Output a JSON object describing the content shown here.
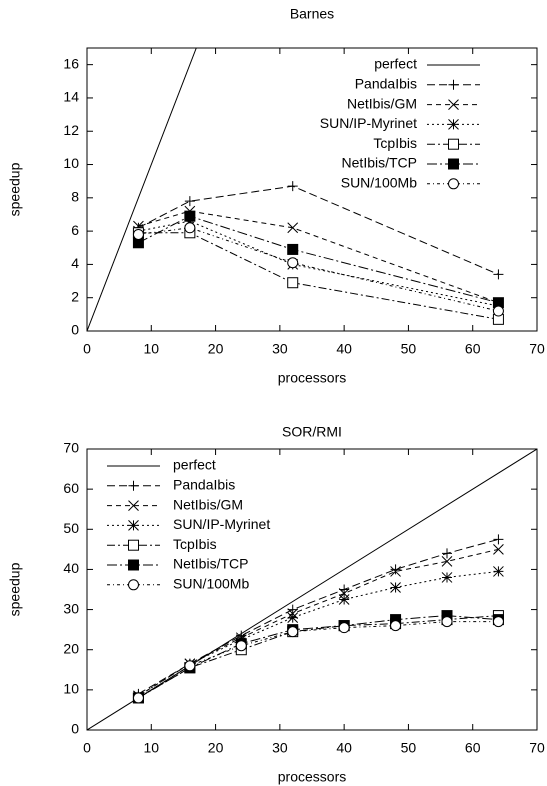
{
  "chart_data": [
    {
      "type": "line",
      "title": "Barnes",
      "xlabel": "processors",
      "ylabel": "speedup",
      "xlim": [
        0,
        70
      ],
      "ylim": [
        0,
        17
      ],
      "xticks": [
        0,
        10,
        20,
        30,
        40,
        50,
        60,
        70
      ],
      "yticks": [
        0,
        2,
        4,
        6,
        8,
        10,
        12,
        14,
        16
      ],
      "legend": "top-right",
      "x": [
        8,
        16,
        32,
        64
      ],
      "series": [
        {
          "name": "perfect",
          "color": "#000000",
          "dash": "none",
          "marker": "none",
          "x": [
            0,
            17
          ],
          "values": [
            0,
            17
          ]
        },
        {
          "name": "PandaIbis",
          "color": "#000000",
          "dash": "8,4",
          "marker": "plus",
          "values": [
            6.2,
            7.8,
            8.7,
            3.4
          ]
        },
        {
          "name": "NetIbis/GM",
          "color": "#000000",
          "dash": "5,4",
          "marker": "cross",
          "values": [
            6.3,
            7.2,
            6.2,
            1.7
          ]
        },
        {
          "name": "SUN/IP-Myrinet",
          "color": "#000000",
          "dash": "2,3",
          "marker": "star",
          "values": [
            6.0,
            6.6,
            4.0,
            1.5
          ]
        },
        {
          "name": "TcpIbis",
          "color": "#000000",
          "dash": "8,3,2,3",
          "marker": "open-square",
          "values": [
            5.9,
            5.9,
            2.9,
            0.7
          ]
        },
        {
          "name": "NetIbis/TCP",
          "color": "#000000",
          "dash": "10,3,2,3",
          "marker": "filled-square",
          "values": [
            5.3,
            6.9,
            4.9,
            1.7
          ]
        },
        {
          "name": "SUN/100Mb",
          "color": "#000000",
          "dash": "3,3,1,3",
          "marker": "open-circle",
          "values": [
            5.8,
            6.2,
            4.1,
            1.2
          ]
        }
      ]
    },
    {
      "type": "line",
      "title": "SOR/RMI",
      "xlabel": "processors",
      "ylabel": "speedup",
      "xlim": [
        0,
        70
      ],
      "ylim": [
        0,
        70
      ],
      "xticks": [
        0,
        10,
        20,
        30,
        40,
        50,
        60,
        70
      ],
      "yticks": [
        0,
        10,
        20,
        30,
        40,
        50,
        60,
        70
      ],
      "legend": "top-left",
      "x": [
        8,
        16,
        24,
        32,
        40,
        48,
        56,
        64
      ],
      "series": [
        {
          "name": "perfect",
          "color": "#000000",
          "dash": "none",
          "marker": "none",
          "x": [
            0,
            70
          ],
          "values": [
            0,
            70
          ]
        },
        {
          "name": "PandaIbis",
          "color": "#000000",
          "dash": "8,4",
          "marker": "plus",
          "values": [
            9,
            16.5,
            23.5,
            30,
            35,
            40,
            44,
            47.5
          ]
        },
        {
          "name": "NetIbis/GM",
          "color": "#000000",
          "dash": "5,4",
          "marker": "cross",
          "values": [
            8.5,
            16.5,
            23,
            29,
            34,
            39.5,
            42,
            45
          ]
        },
        {
          "name": "SUN/IP-Myrinet",
          "color": "#000000",
          "dash": "2,3",
          "marker": "star",
          "values": [
            8.5,
            16.5,
            22.5,
            28,
            32.5,
            35.5,
            38,
            39.5
          ]
        },
        {
          "name": "TcpIbis",
          "color": "#000000",
          "dash": "8,3,2,3",
          "marker": "open-square",
          "values": [
            8,
            15.5,
            20,
            24.5,
            26,
            26.5,
            27.5,
            28.5
          ]
        },
        {
          "name": "NetIbis/TCP",
          "color": "#000000",
          "dash": "10,3,2,3",
          "marker": "filled-square",
          "values": [
            8,
            15.5,
            21.5,
            25,
            26,
            27.5,
            28.5,
            27.5
          ]
        },
        {
          "name": "SUN/100Mb",
          "color": "#000000",
          "dash": "3,3,1,3",
          "marker": "open-circle",
          "values": [
            8,
            16,
            21,
            24.5,
            25.5,
            26,
            27,
            27
          ]
        }
      ]
    }
  ]
}
